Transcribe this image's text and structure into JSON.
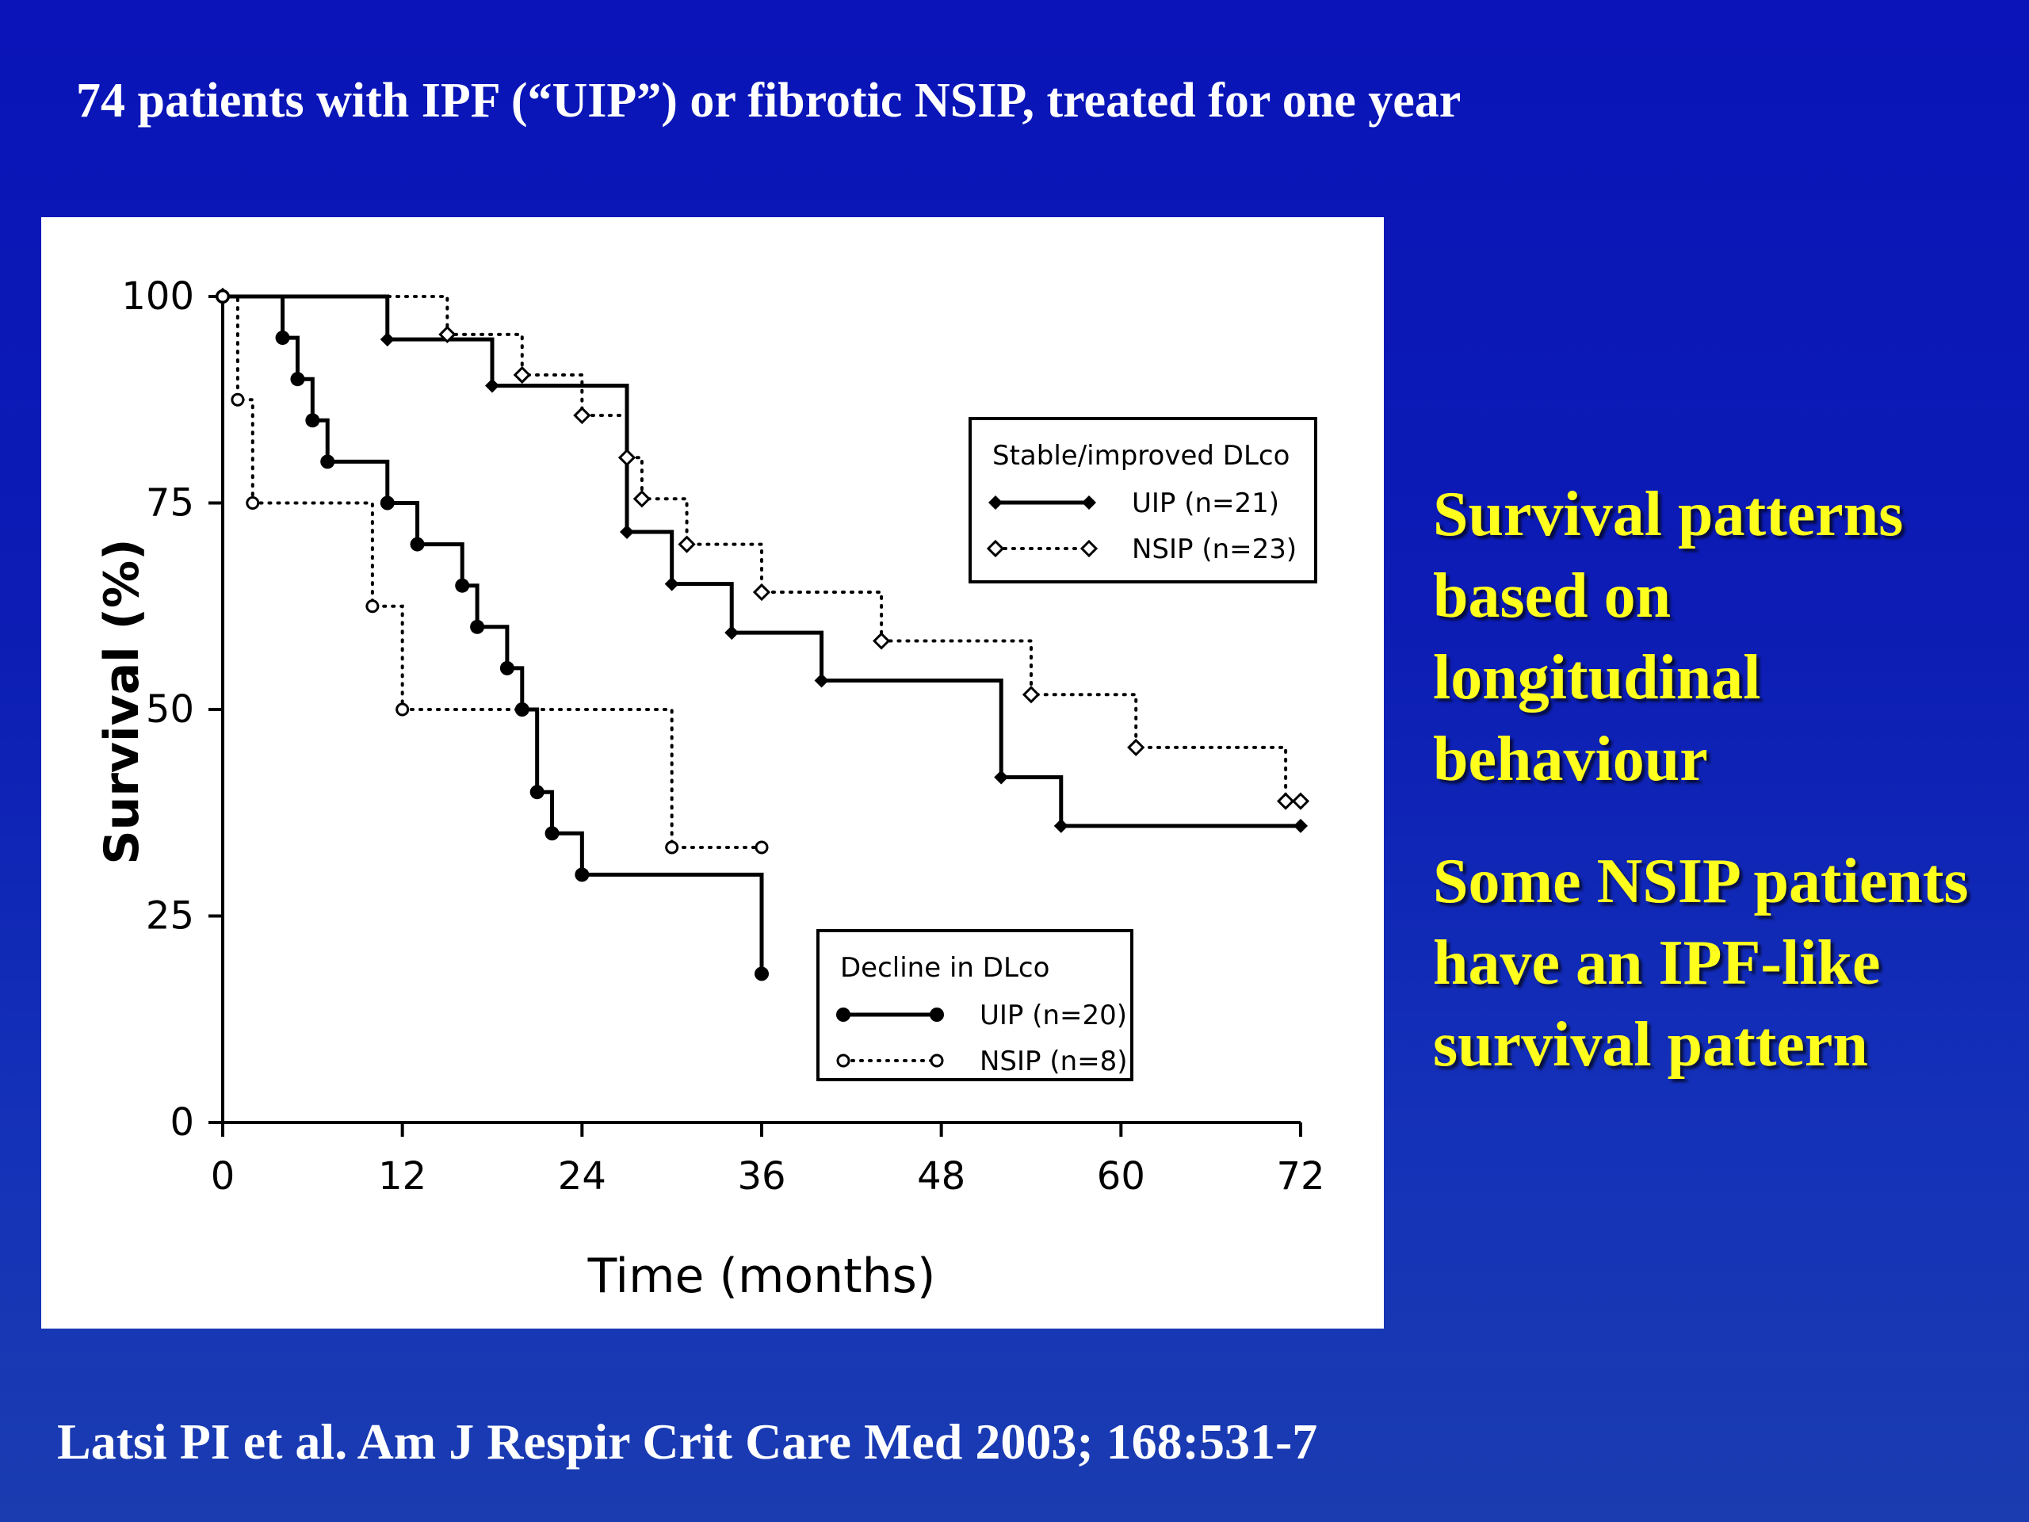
{
  "slide": {
    "title": "74 patients with IPF (“UIP”) or fibrotic NSIP, treated for one year",
    "side_text": [
      "Survival patterns based on longitudinal behaviour",
      "Some NSIP patients have an IPF-like survival pattern"
    ],
    "citation": "Latsi PI et al.  Am J Respir Crit Care Med 2003; 168:531-7"
  },
  "colors": {
    "background": "#0c1cb4",
    "title_text": "#ffffff",
    "side_text": "#ffff1e",
    "chart_background": "#ffffff",
    "ink": "#000000"
  },
  "chart_data": {
    "type": "line",
    "subtype": "kaplan-meier step survival curves",
    "xlabel": "Time (months)",
    "ylabel": "Survival (%)",
    "xlim": [
      0,
      72
    ],
    "ylim": [
      0,
      100
    ],
    "xticks": [
      0,
      12,
      24,
      36,
      48,
      60,
      72
    ],
    "yticks": [
      0,
      25,
      50,
      75,
      100
    ],
    "grid": false,
    "legends": [
      {
        "title": "Stable/improved DLco",
        "placement": "upper-right",
        "entries": [
          {
            "series": "stable-uip",
            "label": "UIP  (n=21)"
          },
          {
            "series": "stable-nsip",
            "label": "NSIP  (n=23)"
          }
        ]
      },
      {
        "title": "Decline  in DLco",
        "placement": "lower-middle",
        "entries": [
          {
            "series": "decline-uip",
            "label": "UIP  (n=20)"
          },
          {
            "series": "decline-nsip",
            "label": "NSIP  (n=8)"
          }
        ]
      }
    ],
    "series": [
      {
        "key": "stable-uip",
        "line": "solid",
        "marker": "filled-diamond",
        "x": [
          0,
          11,
          18,
          27,
          30,
          34,
          40,
          52,
          56,
          72
        ],
        "y": [
          100,
          94.8,
          89.2,
          71.5,
          65.2,
          59.3,
          53.5,
          41.8,
          35.9,
          35.9
        ]
      },
      {
        "key": "stable-nsip",
        "line": "dotted",
        "marker": "open-diamond",
        "x": [
          0,
          15,
          20,
          24,
          27,
          28,
          31,
          36,
          44,
          54,
          61,
          71,
          72
        ],
        "y": [
          100,
          95.4,
          90.5,
          85.6,
          80.5,
          75.5,
          70,
          64.2,
          58.3,
          51.8,
          45.4,
          38.9,
          38.9
        ]
      },
      {
        "key": "decline-uip",
        "line": "solid",
        "marker": "filled-circle",
        "x": [
          0,
          4,
          5,
          6,
          7,
          11,
          13,
          16,
          17,
          19,
          20,
          21,
          22,
          24,
          36
        ],
        "y": [
          100,
          95,
          90,
          85,
          80,
          75,
          70,
          65,
          60,
          55,
          50,
          40,
          35,
          30,
          18
        ]
      },
      {
        "key": "decline-nsip",
        "line": "dotted",
        "marker": "open-circle",
        "x": [
          0,
          1,
          2,
          10,
          12,
          30,
          36
        ],
        "y": [
          100,
          87.5,
          75,
          62.5,
          50,
          33.3,
          33.3
        ]
      }
    ]
  }
}
